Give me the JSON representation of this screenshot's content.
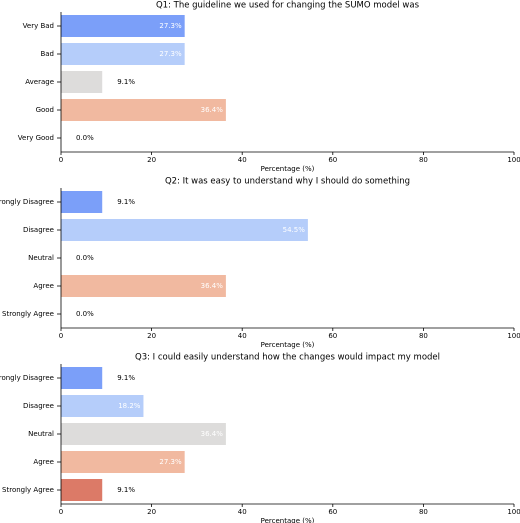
{
  "chart_data": [
    {
      "type": "bar",
      "orientation": "horizontal",
      "title": "Q1: The guideline we used for changing the SUMO model was",
      "xlabel": "Percentage (%)",
      "categories": [
        "Very Bad",
        "Bad",
        "Average",
        "Good",
        "Very Good"
      ],
      "values": [
        27.3,
        27.3,
        9.1,
        36.4,
        0.0
      ],
      "value_labels": [
        "27.3%",
        "27.3%",
        "9.1%",
        "36.4%",
        "0.0%"
      ],
      "colors": [
        "#7b9ff9",
        "#b5cdfa",
        "#dddcdb",
        "#f1b9a0",
        "#dc7a67"
      ],
      "xlim": [
        0,
        100
      ],
      "xticks": [
        0,
        20,
        40,
        60,
        80,
        100
      ]
    },
    {
      "type": "bar",
      "orientation": "horizontal",
      "title": "Q2: It was easy to understand why I should do something",
      "xlabel": "Percentage (%)",
      "categories": [
        "Strongly Disagree",
        "Disagree",
        "Neutral",
        "Agree",
        "Strongly Agree"
      ],
      "values": [
        9.1,
        54.5,
        0.0,
        36.4,
        0.0
      ],
      "value_labels": [
        "9.1%",
        "54.5%",
        "0.0%",
        "36.4%",
        "0.0%"
      ],
      "colors": [
        "#7b9ff9",
        "#b5cdfa",
        "#dddcdb",
        "#f1b9a0",
        "#dc7a67"
      ],
      "xlim": [
        0,
        100
      ],
      "xticks": [
        0,
        20,
        40,
        60,
        80,
        100
      ]
    },
    {
      "type": "bar",
      "orientation": "horizontal",
      "title": "Q3: I could easily understand how the changes would impact my model",
      "xlabel": "Percentage (%)",
      "categories": [
        "Strongly Disagree",
        "Disagree",
        "Neutral",
        "Agree",
        "Strongly Agree"
      ],
      "values": [
        9.1,
        18.2,
        36.4,
        27.3,
        9.1
      ],
      "value_labels": [
        "9.1%",
        "18.2%",
        "36.4%",
        "27.3%",
        "9.1%"
      ],
      "colors": [
        "#7b9ff9",
        "#b5cdfa",
        "#dddcdb",
        "#f1b9a0",
        "#dc7a67"
      ],
      "xlim": [
        0,
        100
      ],
      "xticks": [
        0,
        20,
        40,
        60,
        80,
        100
      ]
    }
  ]
}
